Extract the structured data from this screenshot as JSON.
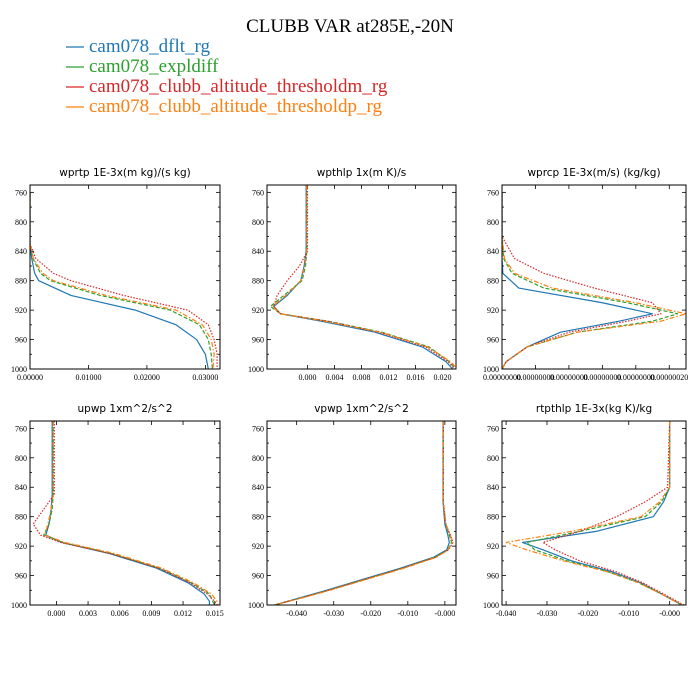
{
  "title": "CLUBB VAR at285E,-20N",
  "legend": [
    {
      "label": "cam078_dflt_rg",
      "color": "#1f77b4",
      "dash": "solid"
    },
    {
      "label": "cam078_expldiff",
      "color": "#2ca02c",
      "dash": "dashed"
    },
    {
      "label": "cam078_clubb_altitude_thresholdm_rg",
      "color": "#d62728",
      "dash": "dotted"
    },
    {
      "label": "cam078_clubb_altitude_thresholdp_rg",
      "color": "#ff7f0e",
      "dash": "dashdot"
    }
  ],
  "chart_data": [
    {
      "type": "line",
      "title": "wprtp  1E-3x(m kg)/(s kg)",
      "xlim": [
        0.0,
        0.0325
      ],
      "ylim": [
        1000,
        750
      ],
      "xticks": [
        0.0,
        0.01,
        0.02,
        0.03
      ],
      "xtick_labels": [
        "0.00000",
        "0.01000",
        "0.02000",
        "0.03000"
      ],
      "yticks": [
        760,
        800,
        840,
        880,
        920,
        960,
        1000
      ],
      "ytick_labels": [
        "760",
        "800",
        "840",
        "880",
        "920",
        "960",
        "1000"
      ],
      "y": [
        760,
        800,
        830,
        850,
        870,
        880,
        900,
        920,
        940,
        960,
        980,
        1000
      ],
      "series": [
        {
          "name": "cam078_dflt_rg",
          "values": [
            0.0,
            0.0,
            0.0,
            0.0003,
            0.0008,
            0.0015,
            0.007,
            0.018,
            0.025,
            0.0285,
            0.03,
            0.0305
          ]
        },
        {
          "name": "cam078_expldiff",
          "values": [
            0.0,
            0.0,
            0.0,
            0.0005,
            0.0018,
            0.0035,
            0.012,
            0.024,
            0.029,
            0.0305,
            0.031,
            0.0312
          ]
        },
        {
          "name": "cam078_clubb_altitude_thresholdm_rg",
          "values": [
            0.0,
            0.0,
            0.0,
            0.001,
            0.004,
            0.007,
            0.016,
            0.027,
            0.0305,
            0.0315,
            0.032,
            0.032
          ]
        },
        {
          "name": "cam078_clubb_altitude_thresholdp_rg",
          "values": [
            0.0,
            0.0,
            0.0,
            0.0006,
            0.0022,
            0.004,
            0.013,
            0.025,
            0.0295,
            0.031,
            0.0315,
            0.0313
          ]
        }
      ]
    },
    {
      "type": "line",
      "title": "wpthlp  1x(m K)/s",
      "xlim": [
        -0.006,
        0.022
      ],
      "ylim": [
        1000,
        750
      ],
      "xticks": [
        0.0,
        0.004,
        0.008,
        0.012,
        0.016,
        0.02
      ],
      "xtick_labels": [
        "0.000",
        "0.004",
        "0.008",
        "0.012",
        "0.016",
        "0.020"
      ],
      "yticks": [
        760,
        800,
        840,
        880,
        920,
        960,
        1000
      ],
      "ytick_labels": [
        "760",
        "800",
        "840",
        "880",
        "920",
        "960",
        "1000"
      ],
      "y": [
        750,
        840,
        860,
        880,
        900,
        915,
        925,
        935,
        950,
        970,
        990,
        1000
      ],
      "series": [
        {
          "name": "cam078_dflt_rg",
          "values": [
            -0.0002,
            -0.0002,
            -0.0005,
            -0.001,
            -0.003,
            -0.005,
            -0.004,
            0.002,
            0.01,
            0.017,
            0.0205,
            0.0215
          ]
        },
        {
          "name": "cam078_expldiff",
          "values": [
            -0.0001,
            -0.0001,
            -0.0003,
            -0.0008,
            -0.0035,
            -0.0055,
            -0.004,
            0.003,
            0.011,
            0.018,
            0.021,
            0.022
          ]
        },
        {
          "name": "cam078_clubb_altitude_thresholdm_rg",
          "values": [
            0.0,
            0.0,
            -0.0012,
            -0.003,
            -0.0045,
            -0.005,
            -0.004,
            0.003,
            0.0105,
            0.0175,
            0.0208,
            0.0218
          ]
        },
        {
          "name": "cam078_clubb_altitude_thresholdp_rg",
          "values": [
            -0.0001,
            -0.0001,
            -0.0004,
            -0.001,
            -0.0032,
            -0.0052,
            -0.004,
            0.0025,
            0.0108,
            0.0178,
            0.0212,
            0.0222
          ]
        }
      ]
    },
    {
      "type": "line",
      "title": "wprcp  1E-3x(m/s) (kg/kg)",
      "xlim": [
        0.0,
        2.2e-06
      ],
      "ylim": [
        1000,
        750
      ],
      "xticks": [
        0.0,
        4e-07,
        8e-07,
        1.2e-06,
        1.6e-06,
        2e-06
      ],
      "xtick_labels": [
        "0.00000000",
        "0.00000000",
        "0.00000000",
        "0.00000000",
        "0.00000000",
        "0.00000020"
      ],
      "yticks": [
        760,
        800,
        840,
        880,
        920,
        960,
        1000
      ],
      "ytick_labels": [
        "760",
        "800",
        "840",
        "880",
        "920",
        "960",
        "1000"
      ],
      "y": [
        760,
        820,
        850,
        870,
        890,
        910,
        925,
        935,
        950,
        970,
        990,
        1000
      ],
      "series": [
        {
          "name": "cam078_dflt_rg",
          "values": [
            0.0,
            0.0,
            0.0,
            1e-08,
            2e-07,
            1.2e-06,
            1.8e-06,
            1.4e-06,
            7e-07,
            3e-07,
            5e-08,
            0.0
          ]
        },
        {
          "name": "cam078_expldiff",
          "values": [
            0.0,
            0.0,
            2e-08,
            1.2e-07,
            5e-07,
            1.5e-06,
            2.1e-06,
            1.8e-06,
            9e-07,
            3e-07,
            5e-08,
            0.0
          ]
        },
        {
          "name": "cam078_clubb_altitude_thresholdm_rg",
          "values": [
            0.0,
            0.0,
            1.5e-07,
            5e-07,
            1.1e-06,
            1.8e-06,
            1.9e-06,
            1.5e-06,
            8e-07,
            3e-07,
            5e-08,
            0.0
          ]
        },
        {
          "name": "cam078_clubb_altitude_thresholdp_rg",
          "values": [
            0.0,
            0.0,
            3e-08,
            1.5e-07,
            6e-07,
            1.6e-06,
            2.2e-06,
            1.9e-06,
            9e-07,
            3e-07,
            5e-08,
            0.0
          ]
        }
      ]
    },
    {
      "type": "line",
      "title": "upwp  1xm^2/s^2",
      "xlim": [
        -0.0025,
        0.0155
      ],
      "ylim": [
        1000,
        750
      ],
      "xticks": [
        0.0,
        0.003,
        0.006,
        0.009,
        0.012,
        0.015
      ],
      "xtick_labels": [
        "0.000",
        "0.003",
        "0.006",
        "0.009",
        "0.012",
        "0.015"
      ],
      "yticks": [
        760,
        800,
        840,
        880,
        920,
        960,
        1000
      ],
      "ytick_labels": [
        "760",
        "800",
        "840",
        "880",
        "920",
        "960",
        "1000"
      ],
      "y": [
        750,
        850,
        870,
        890,
        905,
        915,
        930,
        950,
        970,
        985,
        995,
        1000
      ],
      "series": [
        {
          "name": "cam078_dflt_rg",
          "values": [
            -0.0004,
            -0.0004,
            -0.0005,
            -0.0007,
            -0.001,
            0.0005,
            0.005,
            0.0095,
            0.0125,
            0.014,
            0.0145,
            0.0145
          ]
        },
        {
          "name": "cam078_expldiff",
          "values": [
            -0.0003,
            -0.0003,
            -0.0004,
            -0.0007,
            -0.0012,
            0.0006,
            0.0052,
            0.0098,
            0.0128,
            0.0145,
            0.0148,
            0.015
          ]
        },
        {
          "name": "cam078_clubb_altitude_thresholdm_rg",
          "values": [
            -0.0002,
            -0.0002,
            -0.0012,
            -0.0022,
            -0.0015,
            0.0004,
            0.0051,
            0.0097,
            0.0127,
            0.0143,
            0.015,
            0.0152
          ]
        },
        {
          "name": "cam078_clubb_altitude_thresholdp_rg",
          "values": [
            -0.0003,
            -0.0003,
            -0.0005,
            -0.0008,
            -0.0011,
            0.0008,
            0.0055,
            0.01,
            0.013,
            0.0147,
            0.0152,
            0.0153
          ]
        }
      ]
    },
    {
      "type": "line",
      "title": "vpwp  1xm^2/s^2",
      "xlim": [
        -0.048,
        0.003
      ],
      "ylim": [
        1000,
        750
      ],
      "xticks": [
        -0.04,
        -0.03,
        -0.02,
        -0.01,
        0.0
      ],
      "xtick_labels": [
        "-0.040",
        "-0.030",
        "-0.020",
        "-0.010",
        "-0.000"
      ],
      "yticks": [
        760,
        800,
        840,
        880,
        920,
        960,
        1000
      ],
      "ytick_labels": [
        "760",
        "800",
        "840",
        "880",
        "920",
        "960",
        "1000"
      ],
      "y": [
        750,
        860,
        890,
        905,
        915,
        925,
        935,
        950,
        965,
        980,
        990,
        1000
      ],
      "series": [
        {
          "name": "cam078_dflt_rg",
          "values": [
            -0.0005,
            -0.0005,
            0.0,
            0.0008,
            0.0012,
            0.0005,
            -0.003,
            -0.012,
            -0.022,
            -0.032,
            -0.039,
            -0.046
          ]
        },
        {
          "name": "cam078_expldiff",
          "values": [
            -0.0004,
            -0.0004,
            0.0002,
            0.0012,
            0.0018,
            0.0008,
            -0.0025,
            -0.0115,
            -0.0215,
            -0.0315,
            -0.0385,
            -0.046
          ]
        },
        {
          "name": "cam078_clubb_altitude_thresholdm_rg",
          "values": [
            -0.0004,
            -0.0004,
            0.0002,
            0.0015,
            0.0022,
            0.001,
            -0.0025,
            -0.0115,
            -0.0215,
            -0.0315,
            -0.0385,
            -0.046
          ]
        },
        {
          "name": "cam078_clubb_altitude_thresholdp_rg",
          "values": [
            -0.0004,
            -0.0004,
            0.0003,
            0.0014,
            0.002,
            0.0009,
            -0.0022,
            -0.011,
            -0.021,
            -0.031,
            -0.0382,
            -0.046
          ]
        }
      ]
    },
    {
      "type": "line",
      "title": "rtpthlp  1E-3x(kg K)/kg",
      "xlim": [
        -0.041,
        0.004
      ],
      "ylim": [
        1000,
        750
      ],
      "xticks": [
        -0.04,
        -0.03,
        -0.02,
        -0.01,
        0.0
      ],
      "xtick_labels": [
        "-0.040",
        "-0.030",
        "-0.020",
        "-0.010",
        "-0.000"
      ],
      "yticks": [
        760,
        800,
        840,
        880,
        920,
        960,
        1000
      ],
      "ytick_labels": [
        "760",
        "800",
        "840",
        "880",
        "920",
        "960",
        "1000"
      ],
      "y": [
        750,
        840,
        860,
        880,
        900,
        915,
        925,
        940,
        955,
        970,
        985,
        1000
      ],
      "series": [
        {
          "name": "cam078_dflt_rg",
          "values": [
            0.0,
            0.0,
            -0.0015,
            -0.004,
            -0.018,
            -0.036,
            -0.031,
            -0.024,
            -0.014,
            -0.007,
            -0.002,
            0.003
          ]
        },
        {
          "name": "cam078_expldiff",
          "values": [
            0.0,
            0.0,
            -0.002,
            -0.006,
            -0.022,
            -0.035,
            -0.033,
            -0.025,
            -0.015,
            -0.0075,
            -0.002,
            0.003
          ]
        },
        {
          "name": "cam078_clubb_altitude_thresholdm_rg",
          "values": [
            0.0,
            -0.0005,
            -0.006,
            -0.013,
            -0.022,
            -0.031,
            -0.028,
            -0.022,
            -0.013,
            -0.0065,
            -0.0015,
            0.0035
          ]
        },
        {
          "name": "cam078_clubb_altitude_thresholdp_rg",
          "values": [
            0.0,
            0.0,
            -0.0025,
            -0.007,
            -0.024,
            -0.04,
            -0.035,
            -0.026,
            -0.015,
            -0.0075,
            -0.002,
            0.003
          ]
        }
      ]
    }
  ]
}
